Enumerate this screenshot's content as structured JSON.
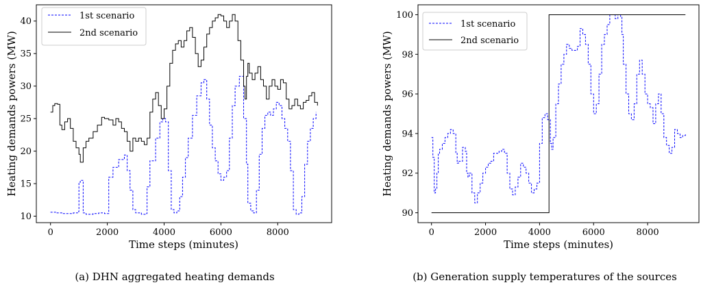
{
  "chart_data": [
    {
      "type": "line",
      "caption": "(a) DHN aggregated heating demands",
      "xlabel": "Time steps (minutes)",
      "ylabel": "Heating demands powers (MW)",
      "xlim": [
        -500,
        9900
      ],
      "ylim": [
        9,
        42.5
      ],
      "xticks": [
        0,
        2000,
        4000,
        6000,
        8000
      ],
      "yticks": [
        10,
        15,
        20,
        25,
        30,
        35,
        40
      ],
      "grid": false,
      "legend_position": "top-left",
      "series": [
        {
          "name": "1st scenario",
          "style": "dashed",
          "color": "#0000ff",
          "x": [
            0,
            200,
            400,
            600,
            800,
            950,
            1000,
            1050,
            1150,
            1250,
            1350,
            1500,
            1700,
            1900,
            2000,
            2050,
            2200,
            2400,
            2600,
            2700,
            2800,
            2900,
            3000,
            3200,
            3350,
            3400,
            3500,
            3700,
            3850,
            3950,
            4050,
            4150,
            4250,
            4350,
            4450,
            4550,
            4650,
            4750,
            4850,
            5000,
            5150,
            5300,
            5400,
            5500,
            5600,
            5700,
            5800,
            5900,
            6000,
            6100,
            6200,
            6300,
            6400,
            6500,
            6650,
            6800,
            6900,
            6950,
            7050,
            7150,
            7250,
            7350,
            7450,
            7550,
            7650,
            7750,
            7850,
            7950,
            8050,
            8150,
            8250,
            8350,
            8450,
            8550,
            8650,
            8750,
            8850,
            8950,
            9050,
            9150,
            9250,
            9350
          ],
          "y": [
            10.6,
            10.5,
            10.4,
            10.4,
            10.5,
            10.7,
            15.2,
            15.5,
            10.5,
            10.3,
            10.3,
            10.4,
            10.5,
            10.4,
            10.4,
            16.0,
            17.5,
            18.7,
            19.4,
            17.0,
            14.0,
            11.0,
            10.5,
            10.3,
            10.4,
            14.5,
            18.5,
            22.0,
            24.5,
            25.0,
            24.5,
            17.0,
            11.0,
            10.5,
            10.8,
            13.0,
            16.0,
            19.0,
            22.0,
            25.5,
            28.5,
            30.5,
            31.0,
            28.0,
            24.0,
            20.5,
            18.5,
            16.5,
            15.5,
            16.0,
            17.0,
            22.0,
            27.0,
            30.0,
            31.5,
            25.0,
            18.0,
            12.0,
            10.8,
            10.5,
            14.0,
            19.5,
            23.5,
            25.5,
            26.0,
            25.5,
            26.5,
            27.5,
            27.0,
            25.0,
            23.5,
            21.5,
            17.0,
            11.0,
            10.3,
            10.5,
            13.0,
            18.0,
            21.5,
            23.5,
            25.0,
            26.0
          ]
        },
        {
          "name": "2nd scenario",
          "style": "solid",
          "color": "#000000",
          "x": [
            0,
            80,
            150,
            250,
            330,
            400,
            500,
            600,
            700,
            800,
            900,
            1000,
            1050,
            1150,
            1250,
            1350,
            1500,
            1650,
            1800,
            1900,
            2050,
            2200,
            2300,
            2400,
            2500,
            2600,
            2700,
            2800,
            2900,
            3000,
            3100,
            3200,
            3300,
            3400,
            3500,
            3600,
            3700,
            3800,
            3900,
            4000,
            4100,
            4200,
            4300,
            4400,
            4500,
            4600,
            4700,
            4800,
            4900,
            5000,
            5100,
            5200,
            5300,
            5400,
            5500,
            5600,
            5700,
            5800,
            5900,
            6000,
            6100,
            6200,
            6300,
            6400,
            6500,
            6600,
            6700,
            6800,
            6850,
            6900,
            6950,
            7000,
            7100,
            7200,
            7300,
            7400,
            7500,
            7600,
            7700,
            7800,
            7900,
            8000,
            8100,
            8200,
            8300,
            8400,
            8500,
            8600,
            8700,
            8800,
            8900,
            9000,
            9100,
            9200,
            9300,
            9400
          ],
          "y": [
            26.0,
            27.0,
            27.3,
            27.2,
            24.0,
            23.3,
            24.5,
            25.0,
            23.5,
            21.5,
            20.5,
            19.5,
            18.3,
            20.5,
            21.5,
            22.0,
            23.0,
            24.0,
            25.2,
            25.0,
            24.8,
            24.0,
            25.0,
            24.5,
            23.5,
            23.0,
            21.5,
            20.0,
            22.0,
            21.5,
            22.0,
            21.5,
            21.0,
            22.0,
            26.0,
            28.0,
            29.0,
            27.0,
            25.0,
            26.5,
            30.0,
            33.5,
            35.5,
            36.5,
            37.0,
            36.0,
            37.0,
            38.5,
            39.0,
            37.5,
            35.0,
            33.0,
            34.0,
            36.0,
            38.0,
            39.0,
            40.0,
            40.5,
            41.0,
            40.8,
            40.0,
            39.0,
            40.0,
            41.0,
            40.0,
            37.0,
            34.0,
            30.0,
            28.0,
            31.5,
            33.5,
            32.0,
            31.0,
            32.0,
            33.0,
            31.0,
            30.0,
            28.0,
            30.0,
            31.0,
            30.0,
            29.5,
            31.0,
            30.5,
            28.0,
            26.5,
            27.0,
            28.0,
            27.0,
            26.5,
            27.5,
            27.8,
            28.5,
            29.0,
            27.5,
            27.0
          ]
        }
      ]
    },
    {
      "type": "line",
      "caption": "(b) Generation supply temperatures of the sources",
      "xlabel": "Time steps (minutes)",
      "ylabel": "Heating demands powers (MW)",
      "xlim": [
        -500,
        9900
      ],
      "ylim": [
        89.5,
        100.5
      ],
      "xticks": [
        0,
        2000,
        4000,
        6000,
        8000
      ],
      "yticks": [
        90,
        92,
        94,
        96,
        98,
        100
      ],
      "grid": false,
      "legend_position": "top-left",
      "series": [
        {
          "name": "1st scenario",
          "style": "dashed",
          "color": "#0000ff",
          "x": [
            0,
            50,
            100,
            150,
            200,
            250,
            300,
            400,
            500,
            600,
            700,
            800,
            900,
            950,
            1000,
            1050,
            1150,
            1250,
            1300,
            1350,
            1400,
            1500,
            1600,
            1700,
            1800,
            1900,
            2000,
            2100,
            2200,
            2300,
            2400,
            2500,
            2600,
            2700,
            2800,
            2900,
            3000,
            3100,
            3200,
            3300,
            3400,
            3500,
            3600,
            3700,
            3800,
            3900,
            4000,
            4100,
            4200,
            4300,
            4400,
            4450,
            4500,
            4600,
            4700,
            4800,
            4900,
            5000,
            5100,
            5200,
            5300,
            5400,
            5500,
            5600,
            5700,
            5800,
            5900,
            6000,
            6100,
            6200,
            6300,
            6400,
            6500,
            6600,
            6700,
            6800,
            6900,
            7000,
            7050,
            7100,
            7200,
            7300,
            7400,
            7500,
            7600,
            7700,
            7800,
            7900,
            8000,
            8100,
            8200,
            8300,
            8400,
            8500,
            8600,
            8700,
            8800,
            8900,
            9000,
            9100,
            9200,
            9300,
            9400
          ],
          "y": [
            93.8,
            92.8,
            91.0,
            91.2,
            92.0,
            93.0,
            93.2,
            93.5,
            93.8,
            94.0,
            94.2,
            94.0,
            93.0,
            92.5,
            92.6,
            92.6,
            93.3,
            93.1,
            92.0,
            91.8,
            92.0,
            91.0,
            90.5,
            91.0,
            91.5,
            92.0,
            92.3,
            92.5,
            92.6,
            93.0,
            93.0,
            93.1,
            93.2,
            93.0,
            92.0,
            91.2,
            90.9,
            91.3,
            91.8,
            92.5,
            92.3,
            92.0,
            91.5,
            91.0,
            91.2,
            91.5,
            93.5,
            94.8,
            95.0,
            94.7,
            93.5,
            93.2,
            93.8,
            95.5,
            96.5,
            97.5,
            98.0,
            98.5,
            98.3,
            98.2,
            98.2,
            98.4,
            99.3,
            99.0,
            98.5,
            97.5,
            96.0,
            95.0,
            95.5,
            97.0,
            98.5,
            99.0,
            99.5,
            100.0,
            100.0,
            99.8,
            100.0,
            99.9,
            99.0,
            97.5,
            96.0,
            95.0,
            94.7,
            95.5,
            97.0,
            97.7,
            97.0,
            96.0,
            95.5,
            95.3,
            94.5,
            95.5,
            96.0,
            95.0,
            93.8,
            93.4,
            93.0,
            93.3,
            94.2,
            94.0,
            93.8,
            93.9,
            94.0
          ]
        },
        {
          "name": "2nd scenario",
          "style": "solid",
          "color": "#000000",
          "x": [
            0,
            4350,
            4350,
            9400
          ],
          "y": [
            90.0,
            90.0,
            100.0,
            100.0
          ]
        }
      ]
    }
  ]
}
